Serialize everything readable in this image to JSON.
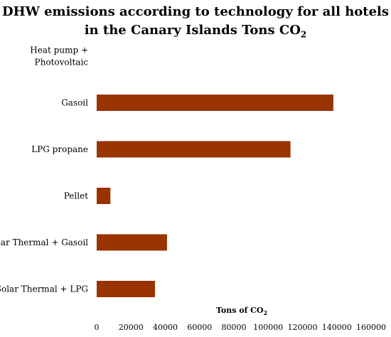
{
  "chart_data": {
    "type": "bar",
    "orientation": "horizontal",
    "title_line1": "DHW emissions according to technology for all hotels",
    "title_line2_prefix": "in the Canary Islands Tons CO",
    "title_line2_sub": "2",
    "xlabel_prefix": "Tons of CO",
    "xlabel_sub": "2",
    "ylabel": "",
    "categories": [
      [
        "Heat pump +",
        "Photovoltaic"
      ],
      [
        "Gasoil"
      ],
      [
        "LPG propane"
      ],
      [
        "Pellet"
      ],
      [
        "Solar Thermal + Gasoil"
      ],
      [
        "Solar Thermal + LPG"
      ]
    ],
    "values": [
      0,
      138000,
      113000,
      8000,
      41000,
      34000
    ],
    "xlim": [
      0,
      160000
    ],
    "xticks": [
      0,
      20000,
      40000,
      60000,
      80000,
      100000,
      120000,
      140000,
      160000
    ],
    "grid": false,
    "bar_color": "#993300"
  }
}
